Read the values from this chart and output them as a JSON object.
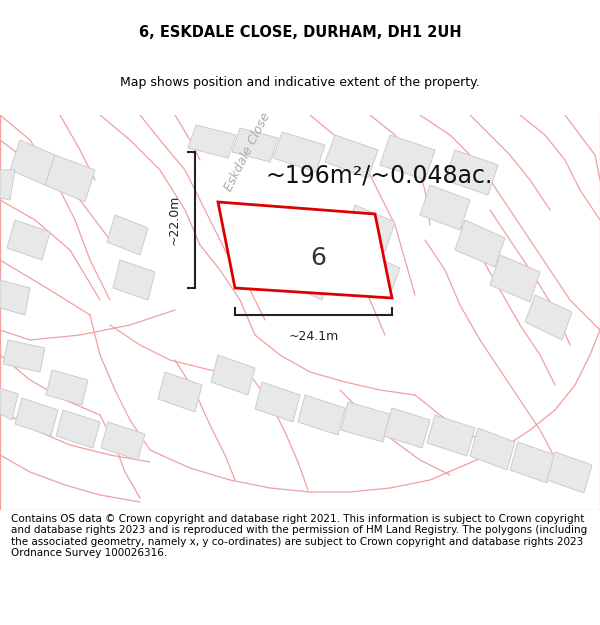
{
  "title": "6, ESKDALE CLOSE, DURHAM, DH1 2UH",
  "subtitle": "Map shows position and indicative extent of the property.",
  "area_label": "~196m²/~0.048ac.",
  "property_number": "6",
  "width_label": "~24.1m",
  "height_label": "~22.0m",
  "street_label": "Eskdale Close",
  "footer_text": "Contains OS data © Crown copyright and database right 2021. This information is subject to Crown copyright and database rights 2023 and is reproduced with the permission of HM Land Registry. The polygons (including the associated geometry, namely x, y co-ordinates) are subject to Crown copyright and database rights 2023 Ordnance Survey 100026316.",
  "bg_color": "#ffffff",
  "map_bg": "#ffffff",
  "plot_edgecolor": "#dd0000",
  "plot_facecolor": "#ffffff",
  "bldg_facecolor": "#e8e8e8",
  "bldg_edgecolor": "#cccccc",
  "boundary_color": "#f0a0a0",
  "title_fontsize": 10.5,
  "subtitle_fontsize": 9,
  "area_fontsize": 17,
  "footer_fontsize": 7.5,
  "meas_color": "#222222"
}
